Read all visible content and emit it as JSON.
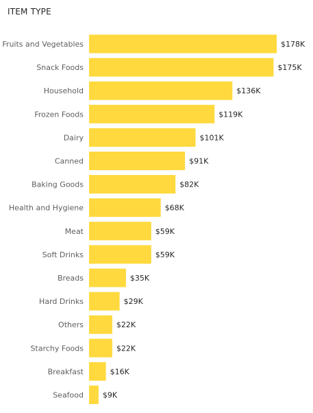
{
  "chart_data": {
    "type": "bar",
    "orientation": "horizontal",
    "title": "ITEM TYPE",
    "categories": [
      "Fruits and Vegetables",
      "Snack Foods",
      "Household",
      "Frozen Foods",
      "Dairy",
      "Canned",
      "Baking Goods",
      "Health and Hygiene",
      "Meat",
      "Soft Drinks",
      "Breads",
      "Hard Drinks",
      "Others",
      "Starchy Foods",
      "Breakfast",
      "Seafood"
    ],
    "values": [
      178,
      175,
      136,
      119,
      101,
      91,
      82,
      68,
      59,
      59,
      35,
      29,
      22,
      22,
      16,
      9
    ],
    "data_labels": [
      "$178K",
      "$175K",
      "$136K",
      "$119K",
      "$101K",
      "$91K",
      "$82K",
      "$68K",
      "$59K",
      "$59K",
      "$35K",
      "$29K",
      "$22K",
      "$22K",
      "$16K",
      "$9K"
    ],
    "xlim": [
      0,
      178
    ],
    "grid": false,
    "legend": "none",
    "bar_color": "#FFD93D"
  }
}
